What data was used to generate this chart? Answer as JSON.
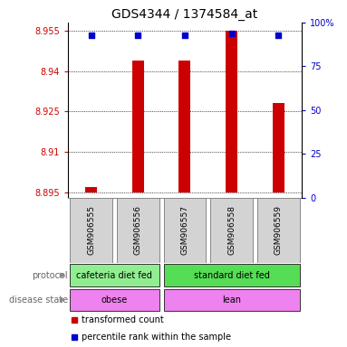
{
  "title": "GDS4344 / 1374584_at",
  "samples": [
    "GSM906555",
    "GSM906556",
    "GSM906557",
    "GSM906558",
    "GSM906559"
  ],
  "transformed_counts": [
    8.897,
    8.944,
    8.944,
    8.955,
    8.928
  ],
  "percentile_ranks": [
    93,
    93,
    93,
    94,
    93
  ],
  "ylim_left": [
    8.893,
    8.958
  ],
  "yticks_left": [
    8.895,
    8.91,
    8.925,
    8.94,
    8.955
  ],
  "yticks_right": [
    0,
    25,
    50,
    75,
    100
  ],
  "bar_bottom": 8.895,
  "bar_color": "#cc0000",
  "dot_color": "#0000cc",
  "protocol_groups": [
    {
      "label": "cafeteria diet fed",
      "start": 0,
      "end": 1,
      "color": "#90ee90"
    },
    {
      "label": "standard diet fed",
      "start": 2,
      "end": 4,
      "color": "#55dd55"
    }
  ],
  "disease_groups": [
    {
      "label": "obese",
      "start": 0,
      "end": 1
    },
    {
      "label": "lean",
      "start": 2,
      "end": 4
    }
  ],
  "disease_color": "#ee82ee",
  "legend_items": [
    {
      "label": "transformed count",
      "color": "#cc0000"
    },
    {
      "label": "percentile rank within the sample",
      "color": "#0000cc"
    }
  ],
  "left_tick_color": "#cc0000",
  "right_tick_color": "#0000cc"
}
